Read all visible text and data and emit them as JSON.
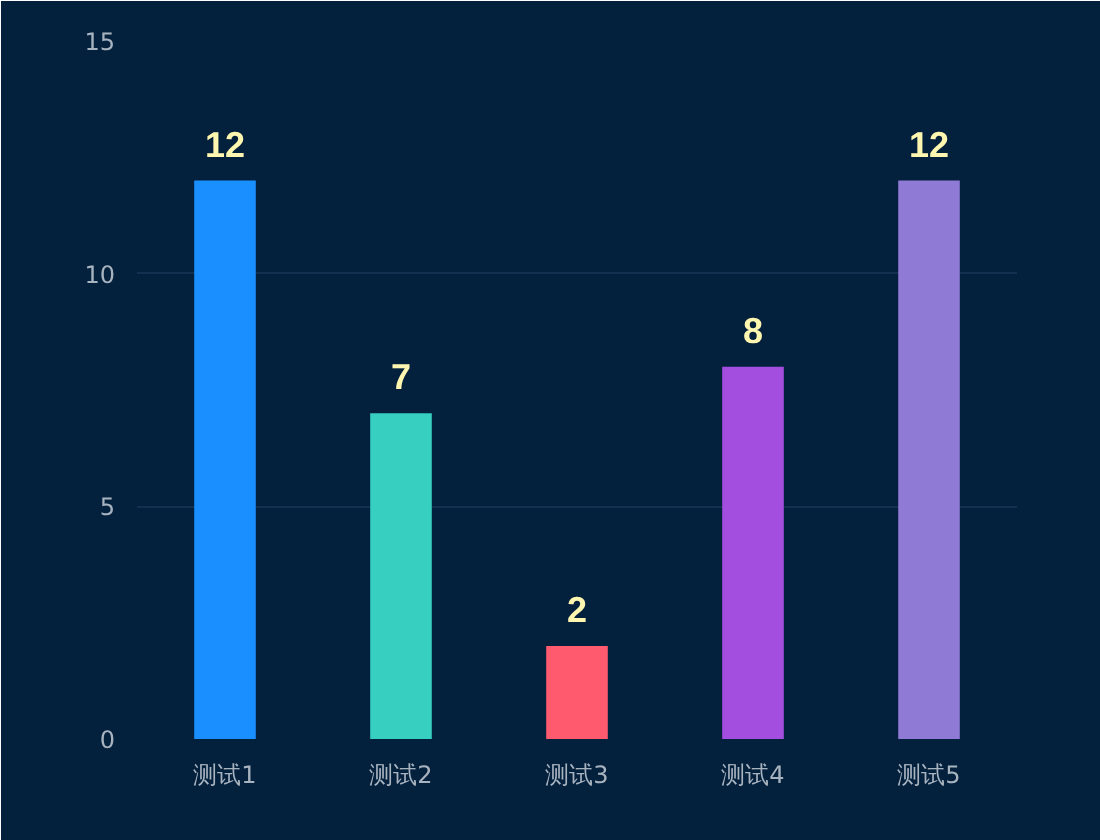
{
  "chart_data": {
    "type": "bar",
    "categories": [
      "测试1",
      "测试2",
      "测试3",
      "测试4",
      "测试5"
    ],
    "values": [
      12,
      7,
      2,
      8,
      12
    ],
    "colors": [
      "#1a8fff",
      "#36cfc0",
      "#ff5a6e",
      "#a44ee0",
      "#8f7ad6"
    ],
    "ylim": [
      0,
      15
    ],
    "yticks": [
      0,
      5,
      10,
      15
    ],
    "grid": "y",
    "data_labels": true
  }
}
